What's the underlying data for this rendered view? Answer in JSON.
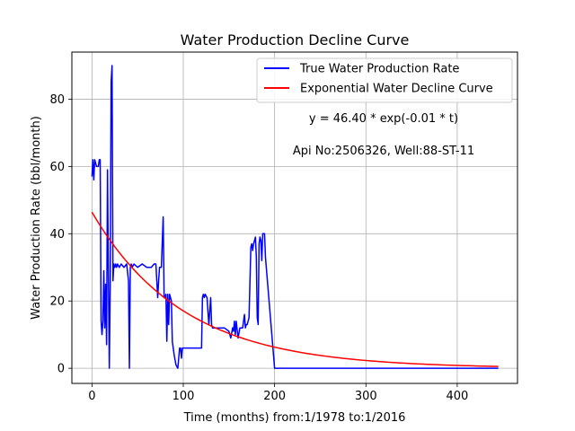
{
  "chart_data": {
    "type": "line",
    "title": "Water Production Decline Curve",
    "xlabel": "Time (months) from:1/1978 to:1/2016",
    "ylabel": "Water Production Rate (bbl/month)",
    "xlim": [
      -22,
      466
    ],
    "ylim": [
      -4.5,
      94
    ],
    "xticks": [
      0,
      100,
      200,
      300,
      400
    ],
    "yticks": [
      0,
      20,
      40,
      60,
      80
    ],
    "grid": true,
    "legend_position": "top-right",
    "annotations": [
      "y = 46.40 * exp(-0.01 * t)",
      "Api No:2506326, Well:88-ST-11"
    ],
    "series": [
      {
        "name": "True Water Production Rate",
        "color": "#0000ff",
        "x": [
          0,
          1,
          2,
          3,
          4,
          5,
          6,
          7,
          8,
          9,
          10,
          11,
          12,
          13,
          14,
          15,
          16,
          17,
          18,
          19,
          20,
          21,
          22,
          23,
          24,
          25,
          26,
          27,
          28,
          30,
          32,
          35,
          38,
          40,
          41,
          42,
          43,
          44,
          46,
          50,
          55,
          60,
          65,
          68,
          70,
          72,
          73,
          74,
          76,
          78,
          79,
          80,
          81,
          82,
          83,
          84,
          85,
          86,
          87,
          88,
          89,
          90,
          92,
          94,
          96,
          97,
          98,
          99,
          100,
          102,
          105,
          110,
          115,
          120,
          121,
          122,
          123,
          124,
          126,
          128,
          130,
          131,
          132,
          135,
          140,
          145,
          150,
          152,
          154,
          155,
          156,
          157,
          158,
          160,
          162,
          165,
          167,
          168,
          169,
          170,
          172,
          174,
          175,
          176,
          177,
          178,
          179,
          180,
          181,
          182,
          183,
          184,
          185,
          186,
          187,
          188,
          189,
          190,
          200,
          250,
          300,
          350,
          400,
          445
        ],
        "y": [
          57,
          62,
          56,
          62,
          61,
          60,
          60,
          60,
          62,
          62,
          14,
          10,
          14,
          29,
          12,
          25,
          7,
          59,
          28,
          0,
          25,
          85,
          90,
          26,
          31,
          30,
          31,
          30,
          31,
          30,
          31,
          30,
          31,
          26,
          0,
          30,
          31,
          30,
          31,
          30,
          31,
          30,
          30,
          31,
          31,
          21,
          26,
          30,
          30,
          45,
          21,
          21,
          22,
          8,
          22,
          13,
          22,
          21,
          20,
          8,
          6,
          4,
          1,
          0,
          6,
          6,
          3,
          6,
          6,
          6,
          6,
          6,
          6,
          6,
          21,
          22,
          21,
          22,
          21,
          13,
          21,
          13,
          12,
          12,
          12,
          12,
          11,
          9,
          12,
          11,
          14,
          10,
          14,
          9,
          12,
          12,
          16,
          12,
          13,
          13,
          15,
          36,
          37,
          35,
          37,
          38,
          39,
          33,
          15,
          13,
          37,
          39,
          38,
          32,
          40,
          40,
          40,
          33,
          0,
          0,
          0,
          0,
          0,
          0
        ]
      },
      {
        "name": "Exponential Water Decline Curve",
        "color": "#ff0000",
        "function": {
          "a": 46.4,
          "b": -0.01,
          "x_start": 0,
          "x_end": 445
        }
      }
    ]
  }
}
